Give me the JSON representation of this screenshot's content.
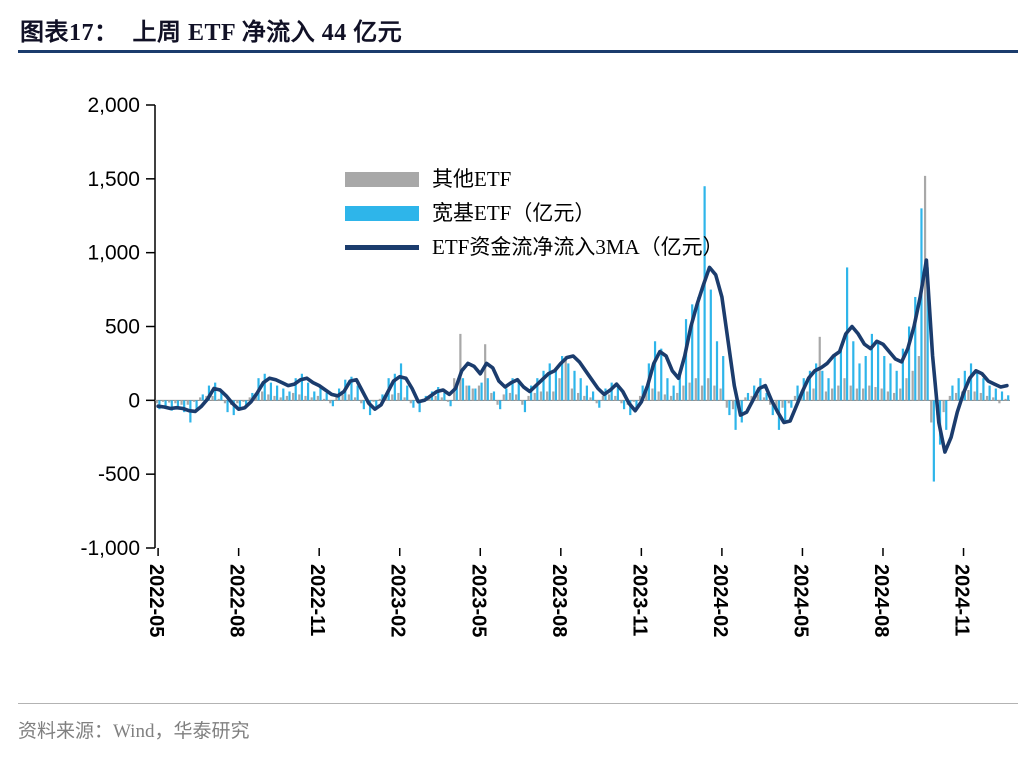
{
  "header": {
    "label": "图表17："
  },
  "footer": {
    "source": "资料来源：Wind，华泰研究"
  },
  "chart_data": {
    "type": "bar+line",
    "title": "上周 ETF 净流入 44 亿元",
    "ylabel": "",
    "xlabel": "",
    "unit": "亿元",
    "ylim": [
      -1000,
      2000
    ],
    "yticks": [
      -1000,
      -500,
      0,
      500,
      1000,
      1500,
      2000
    ],
    "grid": false,
    "legend_position": "top-inside",
    "x_frequency": "weekly",
    "xticks": [
      {
        "index": 0,
        "label": "2022-05"
      },
      {
        "index": 13,
        "label": "2022-08"
      },
      {
        "index": 26,
        "label": "2022-11"
      },
      {
        "index": 39,
        "label": "2023-02"
      },
      {
        "index": 52,
        "label": "2023-05"
      },
      {
        "index": 65,
        "label": "2023-08"
      },
      {
        "index": 78,
        "label": "2023-11"
      },
      {
        "index": 91,
        "label": "2024-02"
      },
      {
        "index": 104,
        "label": "2024-05"
      },
      {
        "index": 117,
        "label": "2024-08"
      },
      {
        "index": 130,
        "label": "2024-11"
      }
    ],
    "series": [
      {
        "name": "其他ETF",
        "type": "bar",
        "color": "#a8a8a8",
        "values": [
          -20,
          -10,
          -15,
          -20,
          -30,
          -30,
          -10,
          20,
          30,
          30,
          10,
          -20,
          -30,
          -20,
          -10,
          20,
          50,
          60,
          40,
          30,
          20,
          30,
          50,
          40,
          30,
          20,
          30,
          10,
          -20,
          30,
          40,
          40,
          20,
          -20,
          -20,
          -10,
          10,
          40,
          40,
          50,
          20,
          -20,
          -10,
          10,
          20,
          30,
          20,
          -10,
          150,
          450,
          100,
          80,
          100,
          380,
          50,
          -30,
          40,
          50,
          40,
          -30,
          30,
          50,
          60,
          60,
          60,
          150,
          300,
          80,
          50,
          30,
          20,
          -20,
          30,
          40,
          30,
          -20,
          -30,
          -10,
          30,
          60,
          80,
          60,
          40,
          30,
          50,
          100,
          120,
          150,
          100,
          150,
          100,
          80,
          -50,
          -60,
          -50,
          20,
          30,
          40,
          20,
          -30,
          -60,
          -50,
          -20,
          30,
          50,
          60,
          80,
          430,
          60,
          80,
          100,
          150,
          100,
          80,
          80,
          100,
          90,
          80,
          60,
          50,
          80,
          150,
          200,
          300,
          1520,
          -150,
          -100,
          -80,
          30,
          50,
          60,
          70,
          60,
          50,
          30,
          20,
          -20,
          10
        ]
      },
      {
        "name": "宽基ETF（亿元）",
        "type": "bar",
        "color": "#2eb5ea",
        "values": [
          -60,
          -40,
          -70,
          -50,
          -80,
          -150,
          -60,
          40,
          100,
          120,
          60,
          -80,
          -100,
          -60,
          -40,
          50,
          150,
          180,
          120,
          100,
          80,
          60,
          150,
          180,
          120,
          60,
          100,
          50,
          -40,
          80,
          140,
          160,
          100,
          -60,
          -100,
          -60,
          40,
          150,
          180,
          250,
          100,
          -50,
          -80,
          30,
          60,
          90,
          50,
          -40,
          100,
          150,
          100,
          80,
          120,
          150,
          60,
          -60,
          80,
          150,
          120,
          -80,
          100,
          150,
          200,
          250,
          220,
          300,
          250,
          200,
          150,
          100,
          60,
          -50,
          80,
          120,
          100,
          -60,
          -100,
          -50,
          100,
          250,
          400,
          350,
          150,
          100,
          200,
          550,
          650,
          700,
          1450,
          750,
          400,
          300,
          -100,
          -200,
          -150,
          50,
          100,
          150,
          50,
          -100,
          -200,
          -150,
          -50,
          100,
          150,
          200,
          250,
          200,
          150,
          300,
          350,
          900,
          400,
          250,
          300,
          450,
          400,
          300,
          250,
          200,
          350,
          500,
          700,
          1300,
          900,
          -550,
          -300,
          -200,
          100,
          150,
          200,
          250,
          200,
          150,
          100,
          80,
          60,
          34
        ]
      },
      {
        "name": "ETF资金流净流入3MA（亿元）",
        "type": "line",
        "color": "#1b3c6d",
        "values": [
          -40,
          -45,
          -55,
          -50,
          -55,
          -70,
          -75,
          -40,
          10,
          80,
          70,
          30,
          -20,
          -60,
          -50,
          -10,
          50,
          120,
          150,
          140,
          120,
          100,
          110,
          140,
          150,
          120,
          100,
          70,
          40,
          30,
          60,
          130,
          140,
          60,
          -20,
          -60,
          -30,
          50,
          130,
          160,
          150,
          80,
          -10,
          0,
          30,
          60,
          70,
          40,
          80,
          200,
          250,
          230,
          180,
          250,
          220,
          130,
          90,
          120,
          140,
          90,
          60,
          100,
          140,
          180,
          200,
          250,
          290,
          300,
          260,
          200,
          140,
          80,
          40,
          70,
          110,
          60,
          -20,
          -70,
          -10,
          100,
          250,
          330,
          300,
          200,
          150,
          300,
          500,
          650,
          780,
          900,
          850,
          700,
          400,
          100,
          -100,
          -80,
          0,
          80,
          100,
          0,
          -80,
          -150,
          -140,
          -40,
          60,
          150,
          200,
          220,
          250,
          300,
          330,
          450,
          500,
          450,
          380,
          350,
          400,
          380,
          330,
          280,
          260,
          350,
          500,
          700,
          950,
          300,
          -150,
          -350,
          -250,
          -80,
          50,
          150,
          200,
          180,
          130,
          110,
          90,
          100
        ]
      }
    ]
  }
}
